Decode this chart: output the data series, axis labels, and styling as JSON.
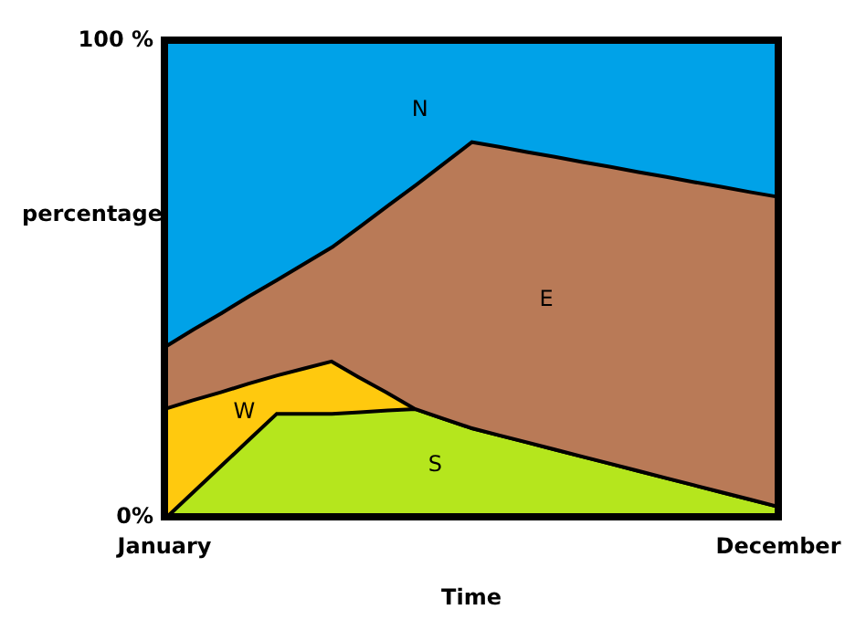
{
  "chart_data": {
    "type": "area",
    "stacked": true,
    "xlabel": "Time",
    "ylabel": "percentage",
    "categories": [
      "January",
      null,
      null,
      null,
      null,
      null,
      null,
      null,
      null,
      null,
      null,
      null,
      null,
      null,
      null,
      null,
      null,
      null,
      null,
      null,
      null,
      null,
      "December"
    ],
    "ylim": [
      0,
      100
    ],
    "yticks": [
      {
        "value": 0,
        "label": "0%"
      },
      {
        "value": 100,
        "label": "100 %"
      }
    ],
    "legend": false,
    "series": [
      {
        "name": "S",
        "color": "#b5e61d",
        "values": [
          0,
          5.5,
          11,
          16.5,
          22,
          22,
          22,
          22.3,
          22.7,
          23,
          21,
          19,
          17.5,
          16,
          14.5,
          13,
          11.5,
          10,
          8.5,
          7,
          5.5,
          4,
          2.5
        ]
      },
      {
        "name": "W",
        "color": "#ffc90e",
        "values": [
          23,
          19.3,
          15.5,
          11.8,
          8,
          9.5,
          11,
          7.3,
          3.7,
          0,
          0,
          0,
          0,
          0,
          0,
          0,
          0,
          0,
          0,
          0,
          0,
          0,
          0
        ]
      },
      {
        "name": "E",
        "color": "#b97a57",
        "values": [
          13,
          14.8,
          16.5,
          18.3,
          20,
          22,
          24,
          31.7,
          39.3,
          47,
          53.5,
          60,
          60.5,
          60.9,
          61.4,
          61.8,
          62.3,
          62.7,
          63.2,
          63.6,
          64.1,
          64.5,
          65
        ]
      },
      {
        "name": "N",
        "color": "#00a2e8",
        "values": [
          64,
          60.4,
          57,
          53.4,
          50,
          46.5,
          43,
          38.7,
          34.3,
          30,
          25.5,
          21,
          22,
          23.1,
          24.1,
          25.2,
          26.2,
          27.3,
          28.3,
          29.4,
          30.4,
          31.5,
          32.5
        ]
      }
    ]
  }
}
